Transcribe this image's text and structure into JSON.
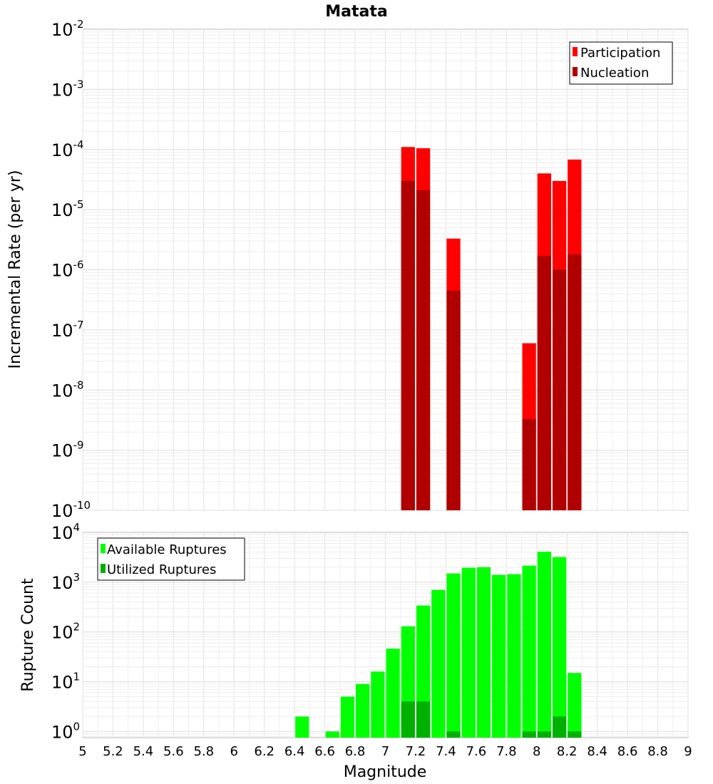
{
  "chart_data": [
    {
      "type": "bar",
      "title": "Matata",
      "xlabel": "",
      "ylabel": "Incremental Rate (per yr)",
      "yscale": "log",
      "ylim": [
        1e-10,
        0.01
      ],
      "xlim": [
        5,
        9
      ],
      "grid": true,
      "legend_position": "top-right",
      "y_ticks": [
        {
          "base": "10",
          "exp": "-10"
        },
        {
          "base": "10",
          "exp": "-9"
        },
        {
          "base": "10",
          "exp": "-8"
        },
        {
          "base": "10",
          "exp": "-7"
        },
        {
          "base": "10",
          "exp": "-6"
        },
        {
          "base": "10",
          "exp": "-5"
        },
        {
          "base": "10",
          "exp": "-4"
        },
        {
          "base": "10",
          "exp": "-3"
        },
        {
          "base": "10",
          "exp": "-2"
        }
      ],
      "series": [
        {
          "name": "Participation",
          "color": "#ff0000",
          "x": [
            7.15,
            7.25,
            7.45,
            7.95,
            8.05,
            8.15,
            8.25
          ],
          "values": [
            0.00011,
            0.000105,
            3.3e-06,
            6e-08,
            4e-05,
            3e-05,
            6.8e-05
          ]
        },
        {
          "name": "Nucleation",
          "color": "#b00000",
          "x": [
            7.15,
            7.25,
            7.45,
            7.95,
            8.05,
            8.15,
            8.25
          ],
          "values": [
            3e-05,
            2.1e-05,
            4.5e-07,
            3.3e-09,
            1.7e-06,
            1e-06,
            1.8e-06
          ]
        }
      ]
    },
    {
      "type": "bar",
      "title": "",
      "xlabel": "Magnitude",
      "ylabel": "Rupture Count",
      "yscale": "log",
      "ylim": [
        0.75,
        10000
      ],
      "xlim": [
        5,
        9
      ],
      "grid": true,
      "legend_position": "top-left",
      "x_ticks": [
        "5",
        "5.2",
        "5.4",
        "5.6",
        "5.8",
        "6",
        "6.2",
        "6.4",
        "6.6",
        "6.8",
        "7",
        "7.2",
        "7.4",
        "7.6",
        "7.8",
        "8",
        "8.2",
        "8.4",
        "8.6",
        "8.8",
        "9"
      ],
      "y_ticks": [
        {
          "base": "10",
          "exp": "0"
        },
        {
          "base": "10",
          "exp": "1"
        },
        {
          "base": "10",
          "exp": "2"
        },
        {
          "base": "10",
          "exp": "3"
        },
        {
          "base": "10",
          "exp": "4"
        }
      ],
      "series": [
        {
          "name": "Available Ruptures",
          "color": "#00ff00",
          "x": [
            6.45,
            6.65,
            6.75,
            6.85,
            6.95,
            7.05,
            7.15,
            7.25,
            7.35,
            7.45,
            7.55,
            7.65,
            7.75,
            7.85,
            7.95,
            8.05,
            8.15,
            8.25
          ],
          "values": [
            2,
            1,
            5,
            9,
            16,
            46,
            130,
            340,
            700,
            1500,
            1950,
            2000,
            1400,
            1450,
            2150,
            4100,
            3200,
            15
          ]
        },
        {
          "name": "Utilized Ruptures",
          "color": "#00b000",
          "x": [
            7.15,
            7.25,
            7.45,
            7.95,
            8.05,
            8.15,
            8.25
          ],
          "values": [
            4,
            4,
            1,
            1,
            1,
            2,
            1
          ]
        }
      ]
    }
  ]
}
